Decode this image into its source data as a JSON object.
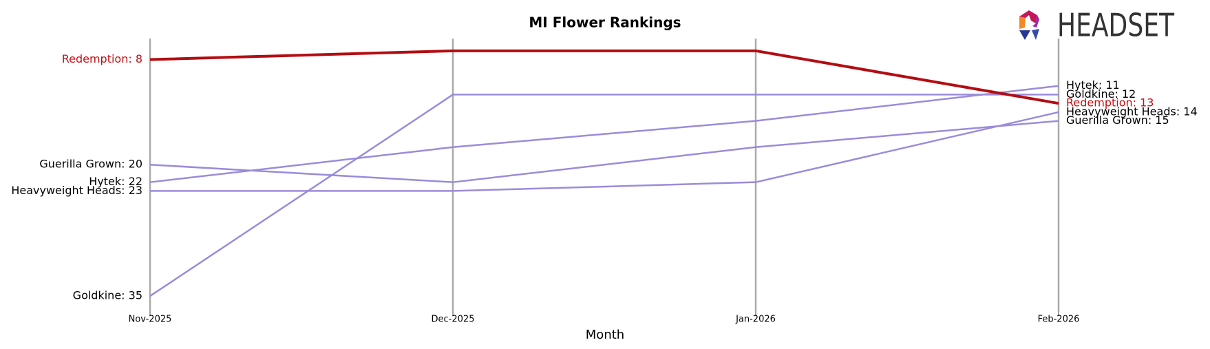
{
  "chart_data": {
    "type": "bump",
    "title": "MI Flower Rankings",
    "x_label": "Month",
    "logo": "HEADSET",
    "categories": [
      "Nov-2025",
      "Dec-2025",
      "Jan-2026",
      "Feb-2026"
    ],
    "ylim": [
      36.8,
      5.6
    ],
    "inverted": true,
    "series": [
      {
        "name": "Hytek",
        "color": "#9b8bdb",
        "label_color": "#000000",
        "values": [
          22,
          18,
          15,
          11
        ],
        "value_labels": [
          "Hytek: 22",
          null,
          null,
          "Hytek: 11"
        ]
      },
      {
        "name": "Goldkine",
        "color": "#9b8bdb",
        "label_color": "#000000",
        "values": [
          35,
          12,
          12,
          12
        ],
        "value_labels": [
          "Goldkine: 35",
          null,
          null,
          "Goldkine: 12"
        ]
      },
      {
        "name": "Heavyweight Heads",
        "color": "#9b8bdb",
        "label_color": "#000000",
        "values": [
          23,
          23,
          22,
          14
        ],
        "value_labels": [
          "Heavyweight Heads: 23",
          null,
          null,
          "Heavyweight Heads: 14"
        ]
      },
      {
        "name": "Guerilla Grown",
        "color": "#9b8bdb",
        "label_color": "#000000",
        "values": [
          20,
          22,
          18,
          15
        ],
        "value_labels": [
          "Guerilla Grown: 20",
          null,
          null,
          "Guerilla Grown: 15"
        ]
      },
      {
        "name": "Redemption",
        "color": "#b30d12",
        "label_color": "#c40f14",
        "values": [
          8,
          7,
          7,
          13
        ],
        "value_labels": [
          "Redemption: 8",
          null,
          null,
          "Redemption: 13"
        ],
        "emphasis": true
      }
    ]
  }
}
